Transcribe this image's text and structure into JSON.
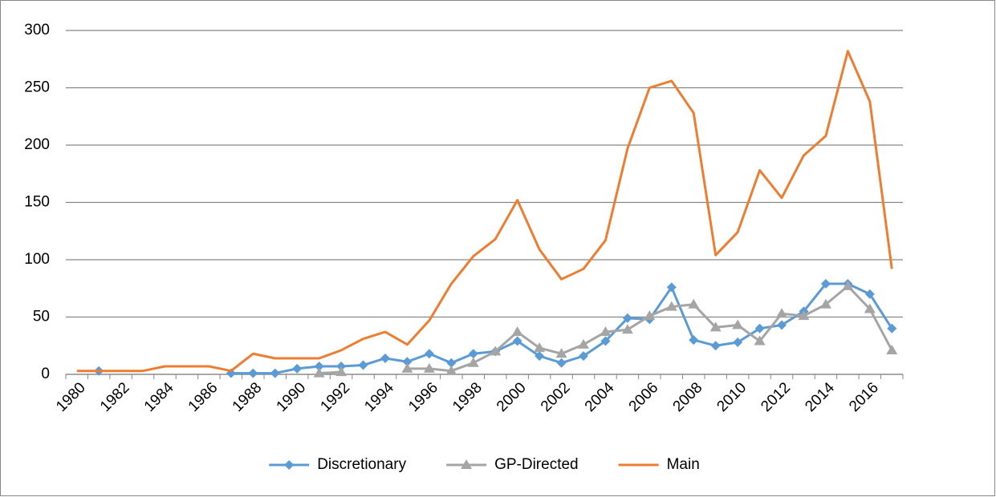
{
  "chart_data": {
    "type": "line",
    "categories": [
      "1980",
      null,
      "1982",
      null,
      "1984",
      null,
      "1986",
      null,
      "1988",
      null,
      "1990",
      null,
      "1992",
      null,
      "1994",
      null,
      "1996",
      null,
      "1998",
      null,
      "2000",
      null,
      "2002",
      null,
      "2004",
      null,
      "2006",
      null,
      "2008",
      null,
      "2010",
      null,
      "2012",
      null,
      "2014",
      null,
      "2016",
      null
    ],
    "series": [
      {
        "name": "Discretionary",
        "color": "#5b9bd5",
        "marker": "diamond",
        "values": [
          null,
          3,
          null,
          null,
          null,
          null,
          null,
          1,
          1,
          1,
          5,
          7,
          7,
          8,
          14,
          11,
          18,
          10,
          18,
          20,
          29,
          16,
          10,
          16,
          29,
          49,
          48,
          76,
          30,
          25,
          28,
          40,
          43,
          55,
          79,
          79,
          70,
          40
        ]
      },
      {
        "name": "GP-Directed",
        "color": "#a5a5a5",
        "marker": "triangle",
        "values": [
          null,
          null,
          null,
          null,
          null,
          null,
          null,
          null,
          null,
          null,
          null,
          1,
          2,
          null,
          null,
          5,
          5,
          3,
          10,
          20,
          37,
          23,
          18,
          26,
          37,
          39,
          51,
          59,
          61,
          41,
          43,
          29,
          53,
          51,
          61,
          77,
          57,
          21
        ]
      },
      {
        "name": "Main",
        "color": "#ed7d31",
        "marker": "none",
        "values": [
          3,
          3,
          3,
          3,
          7,
          7,
          7,
          3,
          18,
          14,
          14,
          14,
          21,
          31,
          37,
          26,
          47,
          79,
          103,
          118,
          152,
          109,
          83,
          92,
          117,
          197,
          250,
          256,
          228,
          104,
          124,
          178,
          154,
          191,
          208,
          282,
          238,
          92
        ]
      }
    ],
    "ylim": [
      0,
      300
    ],
    "yticks": [
      0,
      50,
      100,
      150,
      200,
      250,
      300
    ],
    "grid": true,
    "legend": "bottom"
  }
}
